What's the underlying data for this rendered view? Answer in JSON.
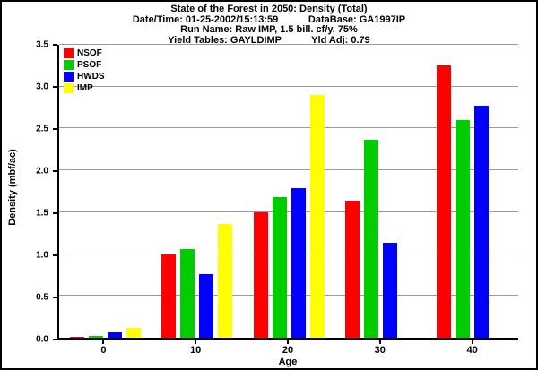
{
  "header": {
    "title": "State of the Forest in 2050: Density (Total)",
    "line2": "Date/Time: 01-25-2002/15:13:59           DataBase: GA1997IP",
    "line3": "Run Name: Raw IMP, 1.5 bill. cf/y, 75%",
    "line4": "Yield Tables: GAYLDIMP           Yld Adj: 0.79"
  },
  "chart_data": {
    "type": "bar",
    "title": "State of the Forest in 2050: Density (Total)",
    "categories": [
      "0",
      "10",
      "20",
      "30",
      "40"
    ],
    "series": [
      {
        "name": "NSOF",
        "color": "#ff0000",
        "values": [
          0.01,
          1.0,
          1.5,
          1.64,
          3.25
        ]
      },
      {
        "name": "PSOF",
        "color": "#00cc00",
        "values": [
          0.02,
          1.06,
          1.68,
          2.37,
          2.6
        ]
      },
      {
        "name": "HWDS",
        "color": "#0000ff",
        "values": [
          0.06,
          0.76,
          1.79,
          1.13,
          2.77
        ]
      },
      {
        "name": "IMP",
        "color": "#ffff00",
        "values": [
          0.12,
          1.36,
          2.9,
          0.0,
          0.0
        ]
      }
    ],
    "xlabel": "Age",
    "ylabel": "Density (mbf/ac)",
    "ylim": [
      0,
      3.5
    ],
    "ytick_step": 0.5,
    "grid": true,
    "legend_position": "top-left"
  }
}
